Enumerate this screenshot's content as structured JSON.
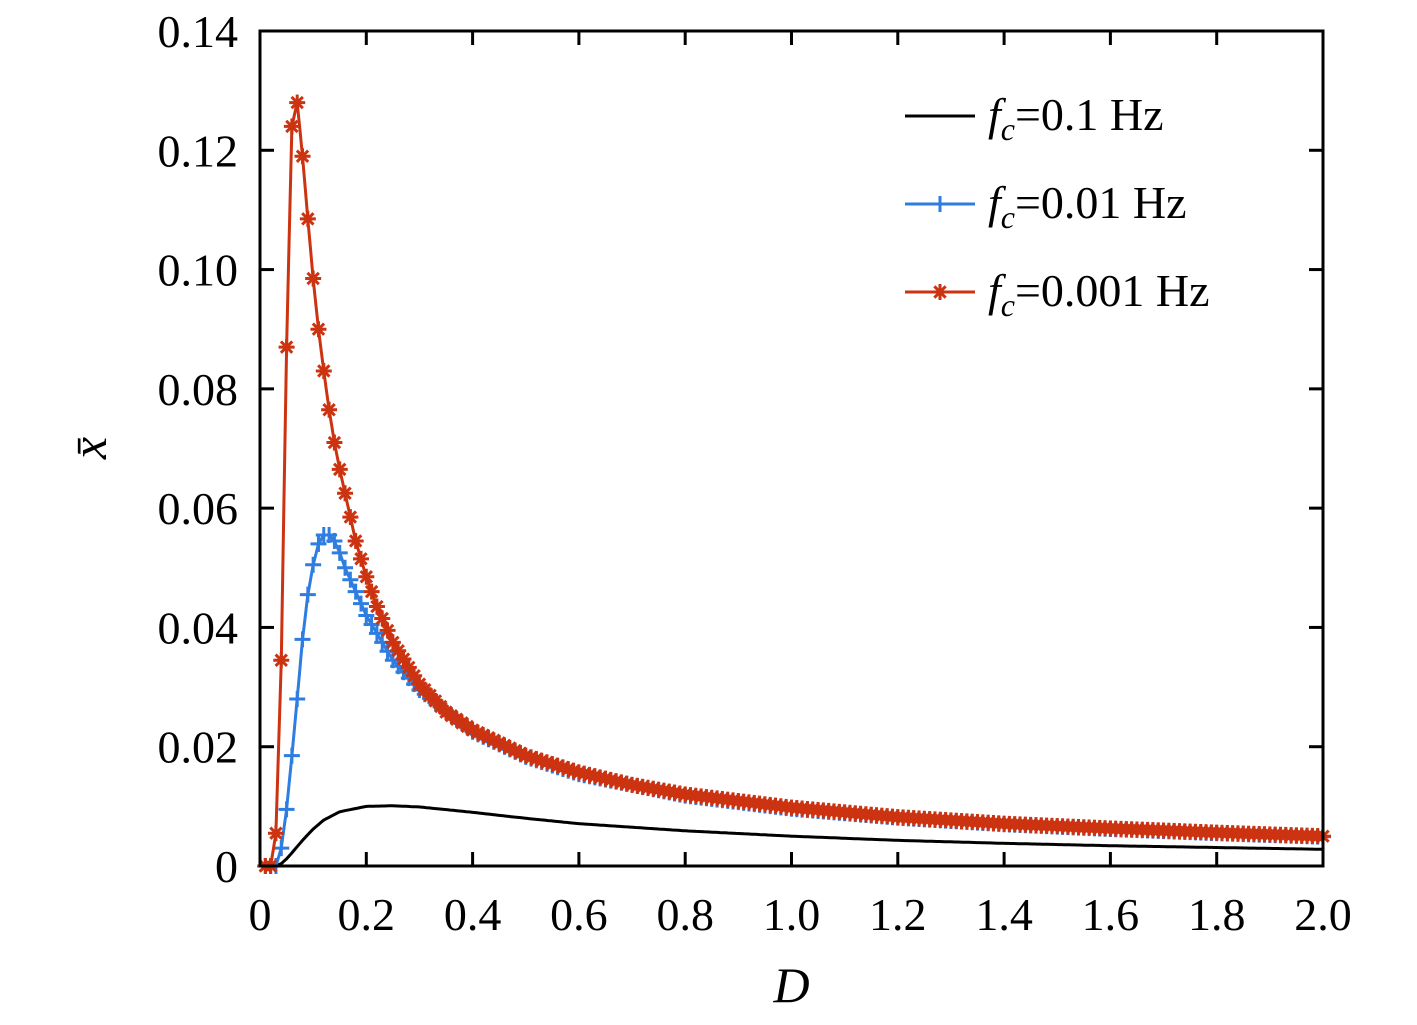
{
  "chart_data": {
    "type": "line",
    "xlabel": "D",
    "ylabel": "x̄",
    "xlim": [
      0,
      2.0
    ],
    "ylim": [
      0,
      0.14
    ],
    "x_ticks": [
      "0",
      "0.2",
      "0.4",
      "0.6",
      "0.8",
      "1.0",
      "1.2",
      "1.4",
      "1.6",
      "1.8",
      "2.0"
    ],
    "x_tick_values": [
      0,
      0.2,
      0.4,
      0.6,
      0.8,
      1.0,
      1.2,
      1.4,
      1.6,
      1.8,
      2.0
    ],
    "y_ticks": [
      "0",
      "0.02",
      "0.04",
      "0.06",
      "0.08",
      "0.10",
      "0.12",
      "0.14"
    ],
    "y_tick_values": [
      0,
      0.02,
      0.04,
      0.06,
      0.08,
      0.1,
      0.12,
      0.14
    ],
    "grid": false,
    "legend_position": "top-right",
    "series": [
      {
        "label_italic": "f",
        "label_sub": "c",
        "label_rest": "=0.1 Hz",
        "color": "#000000",
        "marker": "none",
        "x": [
          0.01,
          0.02,
          0.03,
          0.04,
          0.05,
          0.06,
          0.08,
          0.1,
          0.12,
          0.15,
          0.2,
          0.25,
          0.3,
          0.4,
          0.5,
          0.6,
          0.8,
          1.0,
          1.2,
          1.4,
          1.6,
          1.8,
          2.0
        ],
        "y": [
          0.0,
          0.0,
          0.0,
          0.0004,
          0.0012,
          0.0022,
          0.0043,
          0.0062,
          0.0077,
          0.0091,
          0.01,
          0.0101,
          0.0099,
          0.009,
          0.008,
          0.0071,
          0.0059,
          0.005,
          0.0043,
          0.0038,
          0.0034,
          0.0031,
          0.0028
        ]
      },
      {
        "label_italic": "f",
        "label_sub": "c",
        "label_rest": "=0.01 Hz",
        "color": "#2e7de0",
        "marker": "plus",
        "x": [
          0.01,
          0.02,
          0.03,
          0.04,
          0.05,
          0.06,
          0.07,
          0.08,
          0.09,
          0.1,
          0.11,
          0.12,
          0.13,
          0.14,
          0.15,
          0.16,
          0.18,
          0.2,
          0.25,
          0.3,
          0.4,
          0.5,
          0.6,
          0.8,
          1.0,
          1.2,
          1.4,
          1.6,
          1.8,
          2.0
        ],
        "y": [
          0.0,
          0.0,
          0.0,
          0.003,
          0.0095,
          0.0185,
          0.028,
          0.038,
          0.0455,
          0.0505,
          0.054,
          0.0555,
          0.0555,
          0.0545,
          0.0525,
          0.05,
          0.046,
          0.042,
          0.0345,
          0.0295,
          0.0225,
          0.0183,
          0.0154,
          0.0118,
          0.0096,
          0.0081,
          0.007,
          0.0062,
          0.0055,
          0.0049
        ]
      },
      {
        "label_italic": "f",
        "label_sub": "c",
        "label_rest": "=0.001 Hz",
        "color": "#cc3311",
        "marker": "asterisk",
        "x": [
          0.0,
          0.01,
          0.02,
          0.03,
          0.04,
          0.05,
          0.06,
          0.07,
          0.08,
          0.09,
          0.1,
          0.11,
          0.12,
          0.13,
          0.14,
          0.15,
          0.16,
          0.17,
          0.18,
          0.2,
          0.22,
          0.25,
          0.3,
          0.35,
          0.4,
          0.5,
          0.6,
          0.7,
          0.8,
          1.0,
          1.2,
          1.4,
          1.6,
          1.8,
          2.0
        ],
        "y": [
          0.0,
          0.0,
          0.0,
          0.0055,
          0.0345,
          0.087,
          0.124,
          0.128,
          0.119,
          0.1085,
          0.0985,
          0.09,
          0.083,
          0.0765,
          0.071,
          0.0665,
          0.0625,
          0.0585,
          0.0545,
          0.0485,
          0.0435,
          0.0375,
          0.0305,
          0.0258,
          0.0228,
          0.0185,
          0.0157,
          0.0136,
          0.012,
          0.0098,
          0.0082,
          0.0071,
          0.0063,
          0.0056,
          0.005
        ]
      }
    ]
  }
}
